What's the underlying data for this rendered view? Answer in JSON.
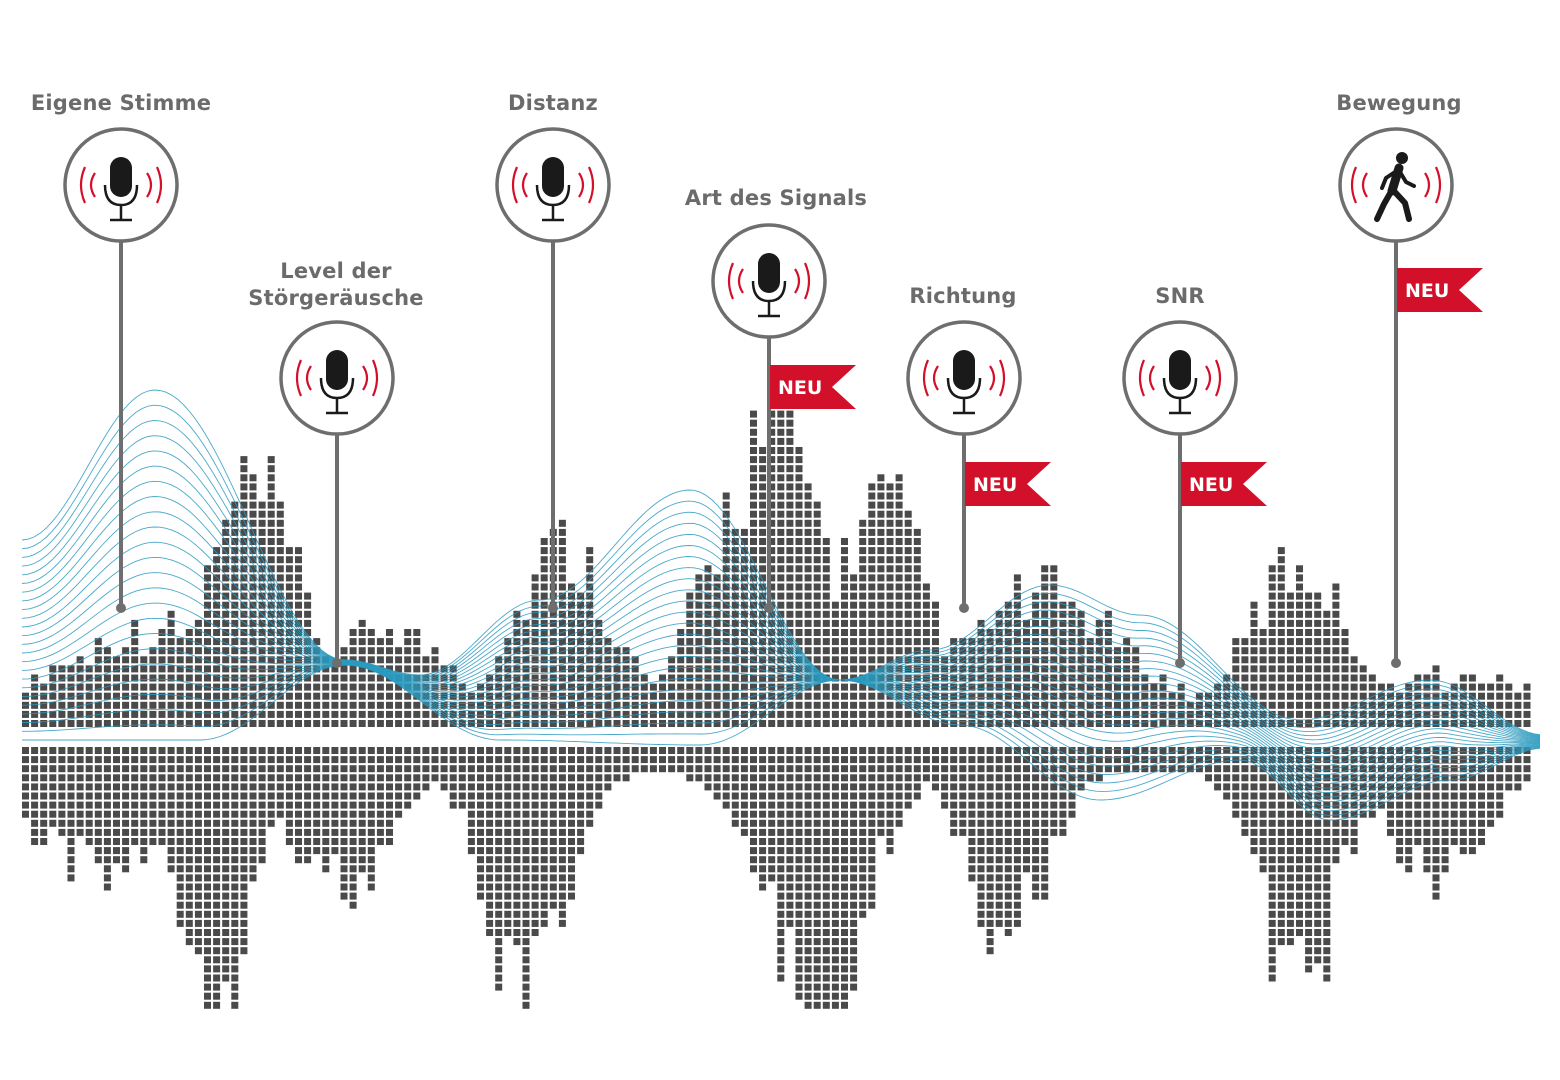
{
  "colors": {
    "square": "#4a4a4a",
    "wave": "#2a9ac0",
    "pin": "#6e6e6e",
    "accent_red": "#d2102a",
    "icon_black": "#1a1a1a",
    "label": "#6b6b6b"
  },
  "features": [
    {
      "label": "Eigene Stimme",
      "icon": "microphone-icon",
      "is_new": false,
      "new_label": ""
    },
    {
      "label": "Level der\nStörgeräusche",
      "icon": "microphone-icon",
      "is_new": false,
      "new_label": ""
    },
    {
      "label": "Distanz",
      "icon": "microphone-icon",
      "is_new": false,
      "new_label": ""
    },
    {
      "label": "Art des Signals",
      "icon": "microphone-icon",
      "is_new": true,
      "new_label": "NEU"
    },
    {
      "label": "Richtung",
      "icon": "microphone-icon",
      "is_new": true,
      "new_label": "NEU"
    },
    {
      "label": "SNR",
      "icon": "microphone-icon",
      "is_new": true,
      "new_label": "NEU"
    },
    {
      "label": "Bewegung",
      "icon": "walking-person-icon",
      "is_new": true,
      "new_label": "NEU"
    }
  ]
}
